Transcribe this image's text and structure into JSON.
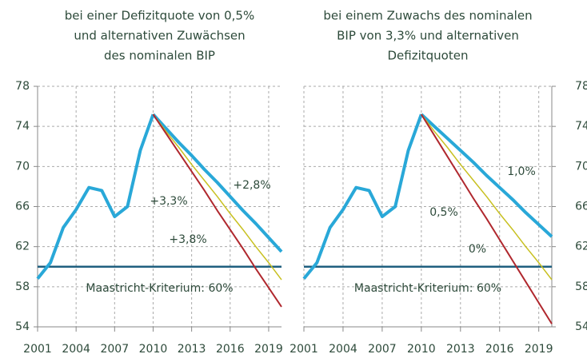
{
  "chart_data": [
    {
      "type": "line",
      "title": [
        "bei einer Defizitquote von 0,5%",
        "und alternativen Zuwächsen",
        "des nominalen BIP"
      ],
      "x": [
        2001,
        2002,
        2003,
        2004,
        2005,
        2006,
        2007,
        2008,
        2009,
        2010,
        2011,
        2012,
        2013,
        2014,
        2015,
        2016,
        2017,
        2018,
        2019,
        2020
      ],
      "xlim": [
        2001,
        2020
      ],
      "xticks": [
        2001,
        2004,
        2007,
        2010,
        2013,
        2016,
        2019
      ],
      "ylim": [
        54,
        78
      ],
      "yticks": [
        54,
        58,
        62,
        66,
        70,
        74,
        78
      ],
      "y_axis_side": "left",
      "grid": true,
      "reference_line": {
        "value": 60,
        "label": "Maastricht-Kriterium: 60%",
        "color": "#1f5f7f"
      },
      "series": [
        {
          "color": "#29a8d8",
          "linewidth": 4,
          "values": [
            58.8,
            60.4,
            63.9,
            65.7,
            67.9,
            67.6,
            65.0,
            66.0,
            71.6,
            75.2,
            null,
            null,
            null,
            null,
            null,
            null,
            null,
            null,
            null,
            null
          ]
        },
        {
          "name": "+2,8%",
          "color": "#29a8d8",
          "linewidth": 4,
          "values": [
            null,
            null,
            null,
            null,
            null,
            null,
            null,
            null,
            null,
            75.2,
            73.8,
            72.4,
            71.1,
            69.7,
            68.4,
            67.0,
            65.6,
            64.3,
            62.9,
            61.5
          ]
        },
        {
          "name": "+3,3%",
          "color": "#c8c020",
          "linewidth": 1.5,
          "values": [
            null,
            null,
            null,
            null,
            null,
            null,
            null,
            null,
            null,
            75.2,
            73.5,
            71.9,
            70.2,
            68.6,
            67.0,
            65.3,
            63.7,
            62.0,
            60.4,
            58.7
          ]
        },
        {
          "name": "+3,8%",
          "color": "#b0282e",
          "linewidth": 2,
          "values": [
            null,
            null,
            null,
            null,
            null,
            null,
            null,
            null,
            null,
            75.2,
            73.3,
            71.4,
            69.5,
            67.6,
            65.6,
            63.7,
            61.8,
            59.8,
            57.9,
            56.0
          ]
        }
      ]
    },
    {
      "type": "line",
      "title": [
        "bei einem Zuwachs des nominalen",
        "BIP von 3,3% und alternativen",
        "Defizitquoten"
      ],
      "x": [
        2001,
        2002,
        2003,
        2004,
        2005,
        2006,
        2007,
        2008,
        2009,
        2010,
        2011,
        2012,
        2013,
        2014,
        2015,
        2016,
        2017,
        2018,
        2019,
        2020
      ],
      "xlim": [
        2001,
        2020
      ],
      "xticks": [
        2001,
        2004,
        2007,
        2010,
        2013,
        2016,
        2019
      ],
      "ylim": [
        54,
        78
      ],
      "yticks": [
        54,
        58,
        62,
        66,
        70,
        74,
        78
      ],
      "y_axis_side": "right",
      "grid": true,
      "reference_line": {
        "value": 60,
        "label": "Maastricht-Kriterium: 60%",
        "color": "#1f5f7f"
      },
      "series": [
        {
          "color": "#29a8d8",
          "linewidth": 4,
          "values": [
            58.8,
            60.4,
            63.9,
            65.7,
            67.9,
            67.6,
            65.0,
            66.0,
            71.6,
            75.2,
            null,
            null,
            null,
            null,
            null,
            null,
            null,
            null,
            null,
            null
          ]
        },
        {
          "name": "1,0%",
          "color": "#29a8d8",
          "linewidth": 4,
          "values": [
            null,
            null,
            null,
            null,
            null,
            null,
            null,
            null,
            null,
            75.2,
            74.0,
            72.8,
            71.6,
            70.4,
            69.1,
            67.9,
            66.7,
            65.4,
            64.2,
            63.0
          ]
        },
        {
          "name": "0,5%",
          "color": "#c8c020",
          "linewidth": 1.5,
          "values": [
            null,
            null,
            null,
            null,
            null,
            null,
            null,
            null,
            null,
            75.2,
            73.5,
            71.9,
            70.2,
            68.6,
            67.0,
            65.3,
            63.7,
            62.0,
            60.4,
            58.7
          ]
        },
        {
          "name": "0%",
          "color": "#b0282e",
          "linewidth": 2,
          "values": [
            null,
            null,
            null,
            null,
            null,
            null,
            null,
            null,
            null,
            75.2,
            73.1,
            71.0,
            68.9,
            66.8,
            64.8,
            62.7,
            60.6,
            58.5,
            56.4,
            54.3
          ]
        }
      ]
    }
  ]
}
